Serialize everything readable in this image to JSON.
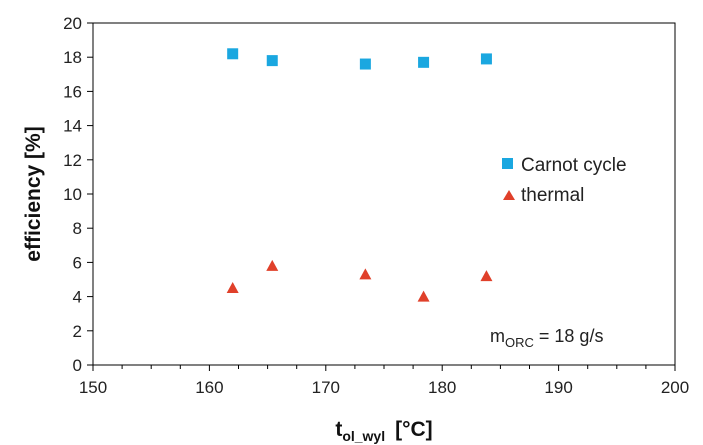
{
  "chart_data": {
    "type": "scatter",
    "title": "",
    "xlabel": {
      "main": "t",
      "subscript": "ol_wyl",
      "unit": "[°C]"
    },
    "ylabel": "efficiency  [%]",
    "xlim": [
      150,
      200
    ],
    "ylim": [
      0,
      20
    ],
    "xticks": [
      150,
      160,
      170,
      180,
      190,
      200
    ],
    "yticks": [
      0,
      2,
      4,
      6,
      8,
      10,
      12,
      14,
      16,
      18,
      20
    ],
    "grid": false,
    "legend_position": "right-middle",
    "series": [
      {
        "name": "Carnot cycle",
        "marker": "square",
        "color": "#1aa7e0",
        "x": [
          162.0,
          165.4,
          173.4,
          178.4,
          183.8
        ],
        "y": [
          18.2,
          17.8,
          17.6,
          17.7,
          17.9
        ]
      },
      {
        "name": "thermal",
        "marker": "triangle",
        "color": "#e0402a",
        "x": [
          162.0,
          165.4,
          173.4,
          178.4,
          183.8
        ],
        "y": [
          4.5,
          5.8,
          5.3,
          4.0,
          5.2
        ]
      }
    ],
    "annotation": {
      "main": "m",
      "subscript": "ORC",
      "rest": " = 18 g/s"
    }
  }
}
